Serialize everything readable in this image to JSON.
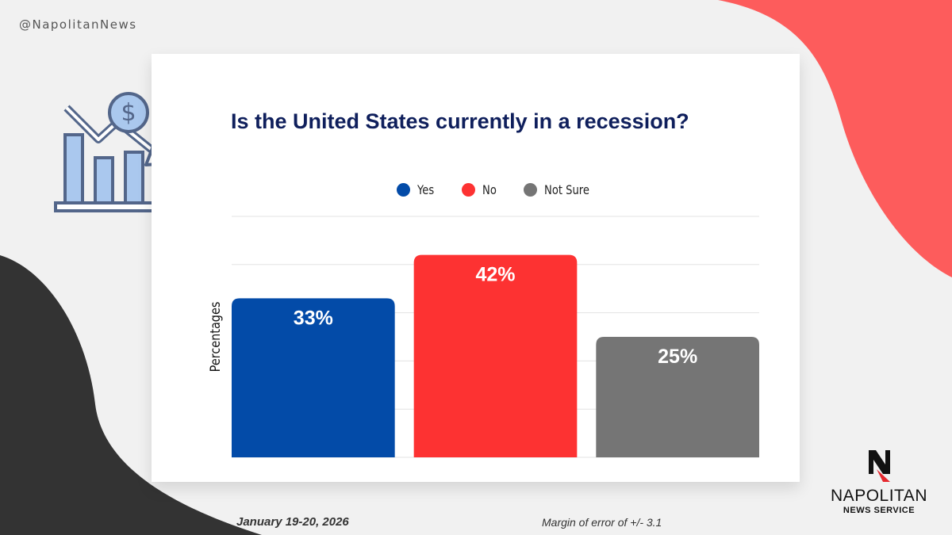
{
  "handle": "@NapolitanNews",
  "chart_data": {
    "type": "bar",
    "title": "Is the United States currently in a recession?",
    "ylabel": "Percentages",
    "xlabel": "",
    "ylim": [
      0,
      50
    ],
    "grid": true,
    "legend_position": "top",
    "categories": [
      "Yes",
      "No",
      "Not Sure"
    ],
    "values": [
      33,
      42,
      25
    ],
    "data_labels": [
      "33%",
      "42%",
      "25%"
    ],
    "colors": [
      "#034ba8",
      "#fd3232",
      "#757575"
    ]
  },
  "footer": {
    "date": "January 19-20, 2026",
    "margin_of_error": "Margin of error of +/- 3.1"
  },
  "logo": {
    "name": "NAPOLITAN",
    "sub": "NEWS SERVICE"
  },
  "icons": {
    "decor": "recession-chart-icon",
    "logo": "napolitan-n-icon"
  }
}
